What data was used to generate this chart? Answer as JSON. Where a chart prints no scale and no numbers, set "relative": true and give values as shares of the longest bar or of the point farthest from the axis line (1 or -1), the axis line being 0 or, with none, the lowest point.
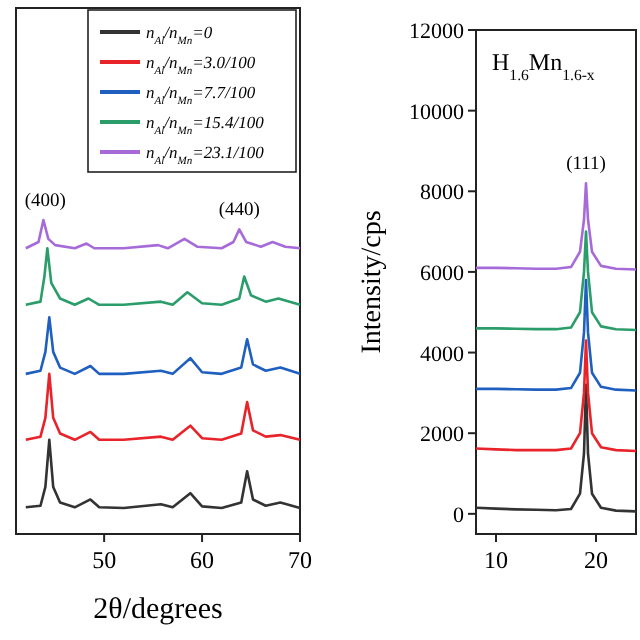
{
  "chart_data": [
    {
      "type": "line",
      "relative": true,
      "xlabel": "2θ/degrees",
      "xlim": [
        41,
        70
      ],
      "xticks": [
        50,
        60,
        70
      ],
      "legend": "top right",
      "annotations": [
        {
          "text": "(400)",
          "x": 44.0,
          "y": 1.0
        },
        {
          "text": "(440)",
          "x": 63.8,
          "y": 0.97
        }
      ],
      "series": [
        {
          "name": "n$_{Al}$/n$_{Mn}$=0",
          "color": "#333333",
          "x": [
            42,
            43.5,
            44.0,
            44.4,
            44.8,
            45.5,
            47,
            48.6,
            49.5,
            52,
            55.8,
            57,
            58.8,
            60,
            62,
            64.0,
            64.6,
            65.2,
            66.5,
            68,
            70
          ],
          "values": [
            0.085,
            0.09,
            0.15,
            0.3,
            0.15,
            0.1,
            0.085,
            0.11,
            0.085,
            0.083,
            0.095,
            0.085,
            0.13,
            0.088,
            0.083,
            0.1,
            0.2,
            0.11,
            0.09,
            0.1,
            0.083
          ]
        },
        {
          "name": "n$_{Al}$/n$_{Mn}$=3.0/100",
          "color": "#e8242a",
          "x": [
            42,
            43.5,
            44.0,
            44.4,
            44.8,
            45.5,
            47,
            48.6,
            49.5,
            52,
            55.8,
            57,
            58.8,
            60,
            62,
            64.0,
            64.6,
            65.2,
            66.5,
            68,
            70
          ],
          "values": [
            0.3,
            0.31,
            0.37,
            0.51,
            0.37,
            0.32,
            0.3,
            0.325,
            0.3,
            0.3,
            0.31,
            0.3,
            0.345,
            0.305,
            0.3,
            0.32,
            0.42,
            0.33,
            0.31,
            0.315,
            0.3
          ]
        },
        {
          "name": "n$_{Al}$/n$_{Mn}$=7.7/100",
          "color": "#1f5fbf",
          "x": [
            42,
            43.5,
            44.0,
            44.4,
            44.8,
            45.5,
            47,
            48.6,
            49.5,
            52,
            55.8,
            57,
            58.8,
            60,
            62,
            64.0,
            64.6,
            65.2,
            66.5,
            68,
            70
          ],
          "values": [
            0.51,
            0.52,
            0.58,
            0.69,
            0.58,
            0.53,
            0.51,
            0.535,
            0.51,
            0.51,
            0.52,
            0.51,
            0.56,
            0.515,
            0.51,
            0.53,
            0.62,
            0.54,
            0.52,
            0.53,
            0.51
          ]
        },
        {
          "name": "n$_{Al}$/n$_{Mn}$=15.4/100",
          "color": "#2a9d6a",
          "x": [
            42,
            43.5,
            43.9,
            44.2,
            44.6,
            45.5,
            47,
            48.4,
            49.5,
            52,
            55.8,
            57,
            58.5,
            60,
            62,
            63.8,
            64.3,
            65.0,
            66.5,
            67.8,
            70
          ],
          "values": [
            0.73,
            0.74,
            0.82,
            0.91,
            0.8,
            0.75,
            0.73,
            0.75,
            0.73,
            0.73,
            0.74,
            0.73,
            0.77,
            0.735,
            0.73,
            0.75,
            0.82,
            0.76,
            0.74,
            0.75,
            0.73
          ]
        },
        {
          "name": "n$_{Al}$/n$_{Mn}$=23.1/100",
          "color": "#a66bd9",
          "x": [
            42,
            43.3,
            43.8,
            44.3,
            45,
            47,
            48.2,
            49,
            52,
            55.5,
            56.5,
            58.2,
            59.5,
            62,
            63.2,
            63.8,
            64.5,
            66,
            67.2,
            68.5,
            70
          ],
          "values": [
            0.91,
            0.93,
            1.0,
            0.94,
            0.92,
            0.91,
            0.925,
            0.91,
            0.91,
            0.92,
            0.91,
            0.94,
            0.915,
            0.91,
            0.93,
            0.97,
            0.93,
            0.915,
            0.93,
            0.915,
            0.91
          ]
        }
      ]
    },
    {
      "type": "line",
      "ylabel": "Intensity/cps",
      "xlim": [
        8,
        24
      ],
      "xticks": [
        10,
        20
      ],
      "ylim": [
        -500,
        12000
      ],
      "yticks": [
        0,
        2000,
        4000,
        6000,
        8000,
        10000,
        12000
      ],
      "annotations": [
        "H$_{1.6}$Mn$_{1.6-x}$",
        {
          "text": "(111)",
          "x": 19.0,
          "y": 8200
        }
      ],
      "series": [
        {
          "color": "#333333",
          "x": [
            8,
            10,
            12,
            14,
            16,
            17.5,
            18.4,
            18.8,
            19.0,
            19.2,
            19.6,
            20.5,
            22,
            24
          ],
          "values": [
            150,
            130,
            110,
            100,
            90,
            120,
            500,
            1500,
            3200,
            1500,
            500,
            150,
            80,
            60
          ]
        },
        {
          "color": "#e8242a",
          "x": [
            8,
            10,
            12,
            14,
            16,
            17.5,
            18.4,
            18.8,
            19.0,
            19.2,
            19.6,
            20.5,
            22,
            24
          ],
          "values": [
            1620,
            1600,
            1580,
            1580,
            1580,
            1620,
            2000,
            3000,
            4300,
            3000,
            2000,
            1650,
            1580,
            1560
          ]
        },
        {
          "color": "#1f5fbf",
          "x": [
            8,
            10,
            12,
            14,
            16,
            17.5,
            18.4,
            18.8,
            19.0,
            19.2,
            19.6,
            20.5,
            22,
            24
          ],
          "values": [
            3100,
            3100,
            3090,
            3080,
            3080,
            3120,
            3500,
            4500,
            5800,
            4500,
            3500,
            3150,
            3080,
            3060
          ]
        },
        {
          "color": "#2a9d6a",
          "x": [
            8,
            10,
            12,
            14,
            16,
            17.5,
            18.4,
            18.8,
            19.0,
            19.2,
            19.6,
            20.5,
            22,
            24
          ],
          "values": [
            4600,
            4600,
            4590,
            4580,
            4580,
            4620,
            5000,
            6000,
            7000,
            6000,
            5000,
            4650,
            4580,
            4560
          ]
        },
        {
          "color": "#a66bd9",
          "x": [
            8,
            10,
            12,
            14,
            16,
            17.5,
            18.4,
            18.8,
            19.0,
            19.2,
            19.6,
            20.5,
            22,
            24
          ],
          "values": [
            6100,
            6100,
            6090,
            6080,
            6080,
            6120,
            6500,
            7300,
            8200,
            7300,
            6500,
            6150,
            6080,
            6060
          ]
        }
      ]
    }
  ]
}
